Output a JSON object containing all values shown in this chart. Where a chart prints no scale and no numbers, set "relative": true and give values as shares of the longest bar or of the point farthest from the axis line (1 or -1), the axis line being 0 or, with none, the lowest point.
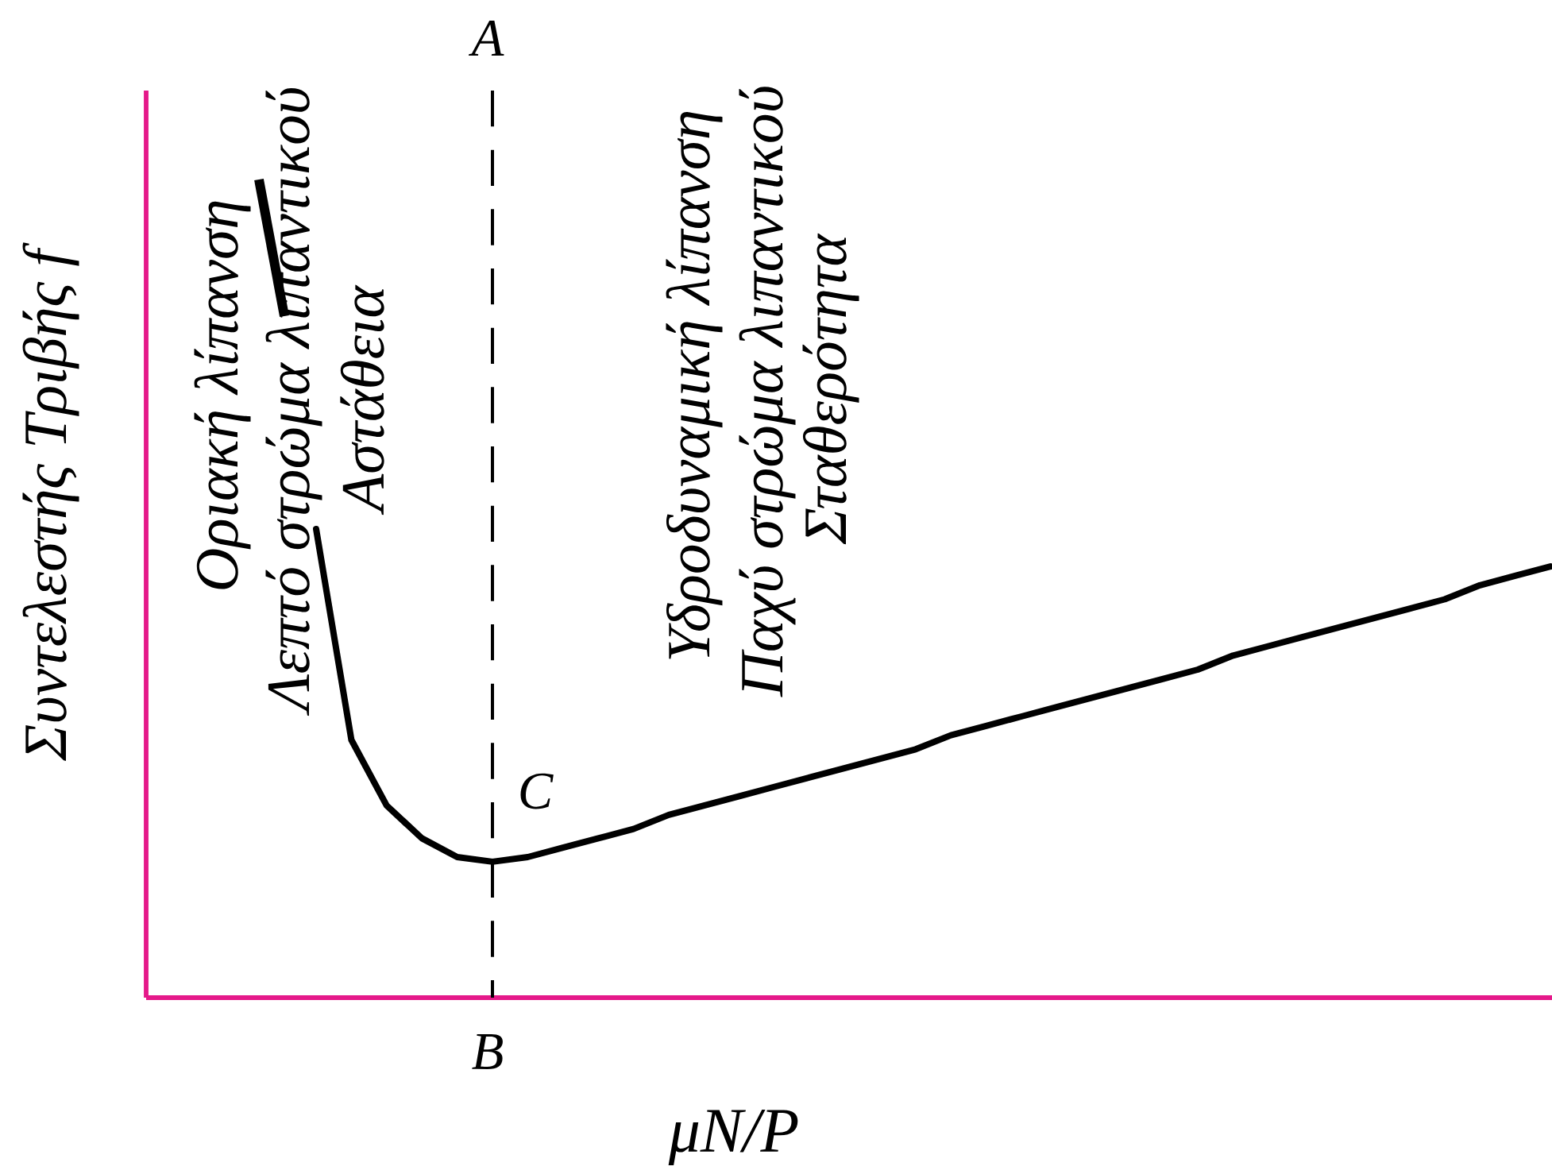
{
  "chart_data": {
    "type": "line",
    "relative": true,
    "xlabel": "μN/P",
    "ylabel": "Συντελεστής Τριβής f",
    "categories": [
      null,
      null,
      null,
      null,
      null,
      null,
      null,
      null,
      null,
      null,
      null,
      null,
      null,
      null,
      null,
      null,
      null,
      null,
      null,
      null,
      null,
      null,
      null,
      null,
      null,
      null,
      null,
      null,
      null,
      null,
      null,
      null,
      null,
      null,
      null,
      null
    ],
    "series": [
      {
        "color": "#000000",
        "values": [
          1.0,
          0.55,
          0.41,
          0.34,
          0.3,
          0.29,
          0.3,
          0.32,
          0.34,
          0.36,
          0.39,
          0.41,
          0.43,
          0.45,
          0.47,
          0.49,
          0.51,
          0.53,
          0.56,
          0.58,
          0.6,
          0.62,
          0.64,
          0.66,
          0.68,
          0.7,
          0.73,
          0.75,
          0.77,
          0.79,
          0.81,
          0.83,
          0.85,
          0.88,
          0.9,
          0.92
        ]
      }
    ],
    "annotations": [
      "A",
      "B",
      "C",
      "Οριακή λίπανση",
      "Λεπτό στρώμα λιπαντικού",
      "Αστάθεια",
      "Υδροδυναμική λίπανση",
      "Παχύ στρώμα λιπαντικού",
      "Σταθερότητα"
    ]
  }
}
